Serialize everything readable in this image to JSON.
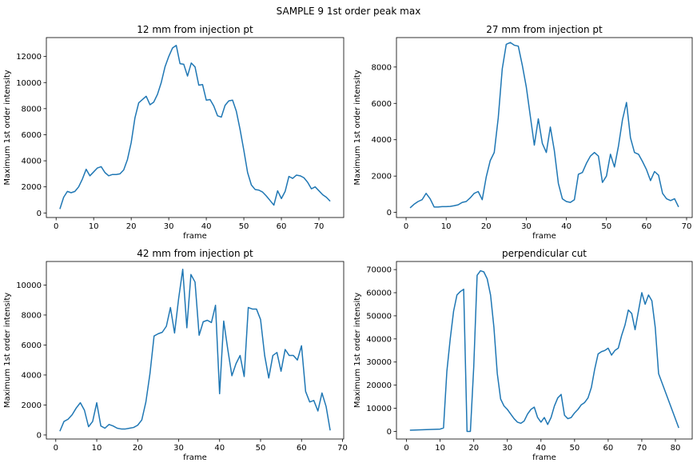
{
  "figure": {
    "suptitle": "SAMPLE 9 1st order peak max"
  },
  "chart_data": [
    {
      "type": "line",
      "title": "12 mm from injection pt",
      "xlabel": "frame",
      "ylabel": "Maximum 1st order intensity",
      "xlim": [
        -2.6,
        76.6
      ],
      "ylim": [
        -350,
        13450
      ],
      "xticks": [
        0,
        10,
        20,
        30,
        40,
        50,
        60,
        70
      ],
      "yticks": [
        0,
        2000,
        4000,
        6000,
        8000,
        10000,
        12000
      ],
      "color": "#1f77b4",
      "x": [
        1,
        2,
        3,
        4,
        5,
        6,
        7,
        8,
        9,
        10,
        11,
        12,
        13,
        14,
        15,
        16,
        17,
        18,
        19,
        20,
        21,
        22,
        23,
        24,
        25,
        26,
        27,
        28,
        29,
        30,
        31,
        32,
        33,
        34,
        35,
        36,
        37,
        38,
        39,
        40,
        41,
        42,
        43,
        44,
        45,
        46,
        47,
        48,
        49,
        50,
        51,
        52,
        53,
        54,
        55,
        56,
        57,
        58,
        59,
        60,
        61,
        62,
        63,
        64,
        65,
        66,
        67,
        68,
        69,
        70,
        71,
        72,
        73
      ],
      "y": [
        300,
        1200,
        1650,
        1550,
        1650,
        2000,
        2600,
        3350,
        2850,
        3150,
        3450,
        3550,
        3100,
        2850,
        2950,
        2950,
        3000,
        3300,
        4100,
        5400,
        7300,
        8450,
        8700,
        8950,
        8300,
        8500,
        9100,
        10000,
        11200,
        12000,
        12650,
        12850,
        11450,
        11400,
        10500,
        11500,
        11200,
        9800,
        9850,
        8650,
        8700,
        8200,
        7450,
        7350,
        8250,
        8600,
        8650,
        7800,
        6400,
        4800,
        3100,
        2150,
        1800,
        1750,
        1600,
        1300,
        950,
        600,
        1700,
        1100,
        1650,
        2800,
        2650,
        2900,
        2850,
        2700,
        2350,
        1850,
        2000,
        1700,
        1400,
        1200,
        900
      ]
    },
    {
      "type": "line",
      "title": "27 mm from injection pt",
      "xlabel": "frame",
      "ylabel": "Maximum 1st order intensity",
      "xlim": [
        -2.4,
        71.4
      ],
      "ylim": [
        -280,
        9620
      ],
      "xticks": [
        0,
        10,
        20,
        30,
        40,
        50,
        60,
        70
      ],
      "yticks": [
        0,
        2000,
        4000,
        6000,
        8000
      ],
      "color": "#1f77b4",
      "x": [
        1,
        2,
        3,
        4,
        5,
        6,
        7,
        8,
        9,
        10,
        11,
        12,
        13,
        14,
        15,
        16,
        17,
        18,
        19,
        20,
        21,
        22,
        23,
        24,
        25,
        26,
        27,
        28,
        29,
        30,
        31,
        32,
        33,
        34,
        35,
        36,
        37,
        38,
        39,
        40,
        41,
        42,
        43,
        44,
        45,
        46,
        47,
        48,
        49,
        50,
        51,
        52,
        53,
        54,
        55,
        56,
        57,
        58,
        59,
        60,
        61,
        62,
        63,
        64,
        65,
        66,
        67,
        68
      ],
      "y": [
        250,
        450,
        600,
        700,
        1050,
        750,
        300,
        300,
        320,
        320,
        330,
        370,
        420,
        550,
        600,
        800,
        1050,
        1150,
        700,
        1950,
        2850,
        3300,
        5200,
        7900,
        9250,
        9350,
        9200,
        9150,
        8100,
        6900,
        5300,
        3700,
        5150,
        3800,
        3300,
        4700,
        3400,
        1600,
        750,
        600,
        550,
        700,
        2100,
        2200,
        2700,
        3100,
        3300,
        3100,
        1650,
        2000,
        3200,
        2500,
        3650,
        5100,
        6050,
        4100,
        3300,
        3200,
        2800,
        2350,
        1750,
        2250,
        2050,
        1050,
        750,
        650,
        750,
        300
      ]
    },
    {
      "type": "line",
      "title": "42 mm from injection pt",
      "xlabel": "frame",
      "ylabel": "Maximum 1st order intensity",
      "xlim": [
        -2.3,
        70.3
      ],
      "ylim": [
        -270,
        11570
      ],
      "xticks": [
        0,
        10,
        20,
        30,
        40,
        50,
        60,
        70
      ],
      "yticks": [
        0,
        2000,
        4000,
        6000,
        8000,
        10000
      ],
      "color": "#1f77b4",
      "x": [
        1,
        2,
        3,
        4,
        5,
        6,
        7,
        8,
        9,
        10,
        11,
        12,
        13,
        14,
        15,
        16,
        17,
        18,
        19,
        20,
        21,
        22,
        23,
        24,
        25,
        26,
        27,
        28,
        29,
        30,
        31,
        32,
        33,
        34,
        35,
        36,
        37,
        38,
        39,
        40,
        41,
        42,
        43,
        44,
        45,
        46,
        47,
        48,
        49,
        50,
        51,
        52,
        53,
        54,
        55,
        56,
        57,
        58,
        59,
        60,
        61,
        62,
        63,
        64,
        65,
        66,
        67
      ],
      "y": [
        250,
        900,
        1050,
        1350,
        1800,
        2150,
        1650,
        550,
        900,
        2150,
        600,
        450,
        700,
        600,
        450,
        400,
        400,
        450,
        500,
        650,
        1000,
        2200,
        4100,
        6600,
        6750,
        6850,
        7250,
        8500,
        6800,
        9100,
        11050,
        7150,
        10700,
        10200,
        6650,
        7550,
        7650,
        7500,
        8650,
        2750,
        7600,
        5700,
        3950,
        4750,
        5300,
        3900,
        8500,
        8400,
        8400,
        7700,
        5300,
        3800,
        5300,
        5500,
        4250,
        5700,
        5300,
        5300,
        5000,
        5950,
        2900,
        2200,
        2300,
        1600,
        2800,
        1900,
        300
      ]
    },
    {
      "type": "line",
      "title": "perpendicular cut",
      "xlabel": "frame",
      "ylabel": "Maximum 1st order intensity",
      "xlim": [
        -3.0,
        85.0
      ],
      "ylim": [
        -3300,
        73500
      ],
      "xticks": [
        0,
        10,
        20,
        30,
        40,
        50,
        60,
        70,
        80
      ],
      "yticks": [
        0,
        10000,
        20000,
        30000,
        40000,
        50000,
        60000,
        70000
      ],
      "color": "#1f77b4",
      "x": [
        1,
        10,
        11,
        12,
        13,
        14,
        15,
        16,
        17,
        18,
        19,
        20,
        21,
        22,
        23,
        24,
        25,
        26,
        27,
        28,
        29,
        30,
        31,
        32,
        33,
        34,
        35,
        36,
        37,
        38,
        39,
        40,
        41,
        42,
        43,
        44,
        45,
        46,
        47,
        48,
        49,
        50,
        51,
        52,
        53,
        54,
        55,
        56,
        57,
        58,
        59,
        60,
        61,
        62,
        63,
        64,
        65,
        66,
        67,
        68,
        69,
        70,
        71,
        72,
        73,
        74,
        75,
        81
      ],
      "y": [
        500,
        1000,
        1500,
        26000,
        40000,
        52000,
        59000,
        60500,
        61500,
        0,
        0,
        28000,
        67500,
        69500,
        69000,
        66000,
        59000,
        45000,
        25000,
        14000,
        11000,
        9500,
        7500,
        5500,
        4000,
        3500,
        4500,
        7500,
        9500,
        10500,
        6000,
        4000,
        6000,
        3000,
        6000,
        11000,
        14500,
        16000,
        7000,
        5500,
        6000,
        8000,
        9500,
        11500,
        12500,
        14500,
        19000,
        27000,
        33500,
        34500,
        35000,
        36000,
        33000,
        35000,
        36000,
        41500,
        46000,
        52500,
        51000,
        44000,
        52000,
        60000,
        55000,
        59000,
        56500,
        45000,
        25000,
        1500
      ]
    }
  ]
}
